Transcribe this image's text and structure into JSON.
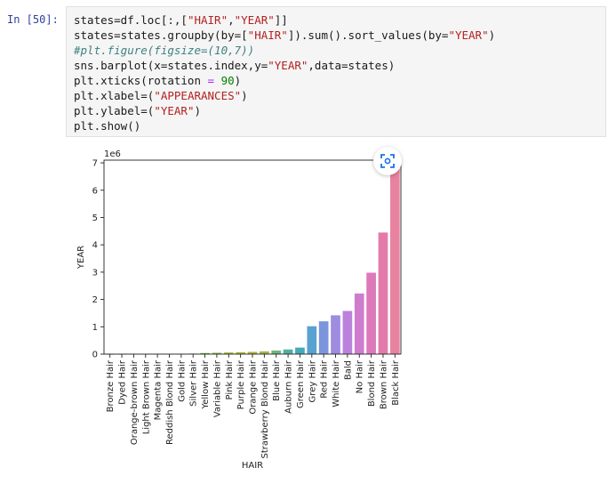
{
  "cell": {
    "prompt": "In [50]:",
    "code_lines": [
      [
        {
          "t": "states=df.loc[:,[",
          "c": ""
        },
        {
          "t": "\"HAIR\"",
          "c": "str"
        },
        {
          "t": ",",
          "c": ""
        },
        {
          "t": "\"YEAR\"",
          "c": "str"
        },
        {
          "t": "]]",
          "c": ""
        }
      ],
      [
        {
          "t": "states=states.groupby(by=[",
          "c": ""
        },
        {
          "t": "\"HAIR\"",
          "c": "str"
        },
        {
          "t": "]).sum().sort_values(by=",
          "c": ""
        },
        {
          "t": "\"YEAR\"",
          "c": "str"
        },
        {
          "t": ")",
          "c": ""
        }
      ],
      [
        {
          "t": "#plt.figure(figsize=(10,7))",
          "c": "cm"
        }
      ],
      [
        {
          "t": "sns.barplot(x=states.index,y=",
          "c": ""
        },
        {
          "t": "\"YEAR\"",
          "c": "str"
        },
        {
          "t": ",data=states)",
          "c": ""
        }
      ],
      [
        {
          "t": "plt.xticks(rotation ",
          "c": ""
        },
        {
          "t": "=",
          "c": "op"
        },
        {
          "t": " ",
          "c": ""
        },
        {
          "t": "90",
          "c": "num"
        },
        {
          "t": ")",
          "c": ""
        }
      ],
      [
        {
          "t": "plt.xlabel=(",
          "c": ""
        },
        {
          "t": "\"APPEARANCES\"",
          "c": "str"
        },
        {
          "t": ")",
          "c": ""
        }
      ],
      [
        {
          "t": "plt.ylabel=(",
          "c": ""
        },
        {
          "t": "\"YEAR\"",
          "c": "str"
        },
        {
          "t": ")",
          "c": ""
        }
      ],
      [
        {
          "t": "plt.show()",
          "c": ""
        }
      ]
    ]
  },
  "expand_icon": "expand-image-icon",
  "chart_data": {
    "type": "bar",
    "xlabel": "HAIR",
    "ylabel": "YEAR",
    "offset_label": "1e6",
    "ylim": [
      0,
      7.1
    ],
    "yticks": [
      0,
      1,
      2,
      3,
      4,
      5,
      6,
      7
    ],
    "categories": [
      "Bronze Hair",
      "Dyed Hair",
      "Orange-brown Hair",
      "Light Brown Hair",
      "Magenta Hair",
      "Reddish Blond Hair",
      "Gold Hair",
      "Silver Hair",
      "Yellow Hair",
      "Variable Hair",
      "Pink Hair",
      "Purple Hair",
      "Orange Hair",
      "Strawberry Blond Hair",
      "Blue Hair",
      "Auburn Hair",
      "Green Hair",
      "Grey Hair",
      "Red Hair",
      "White Hair",
      "Bald",
      "No Hair",
      "Blond Hair",
      "Brown Hair",
      "Black Hair"
    ],
    "values": [
      0.002,
      0.004,
      0.006,
      0.008,
      0.01,
      0.012,
      0.015,
      0.02,
      0.04,
      0.05,
      0.06,
      0.07,
      0.08,
      0.1,
      0.13,
      0.17,
      0.24,
      1.02,
      1.2,
      1.42,
      1.58,
      2.22,
      2.98,
      4.45,
      7.05
    ],
    "colors": [
      "#1f5f8b",
      "#25738f",
      "#2a8a8c",
      "#2f9a86",
      "#38a87c",
      "#3daf73",
      "#46b467",
      "#56ba5a",
      "#6fbc4e",
      "#88bd45",
      "#9cba3f",
      "#a8b43a",
      "#b3ad3a",
      "#a9b24a",
      "#6fb57e",
      "#4fb0a3",
      "#43aab8",
      "#58a1d0",
      "#7b95dc",
      "#9f8bdf",
      "#bb82dc",
      "#cf7ccf",
      "#dd78bb",
      "#e37aaa",
      "#e8839f"
    ]
  }
}
